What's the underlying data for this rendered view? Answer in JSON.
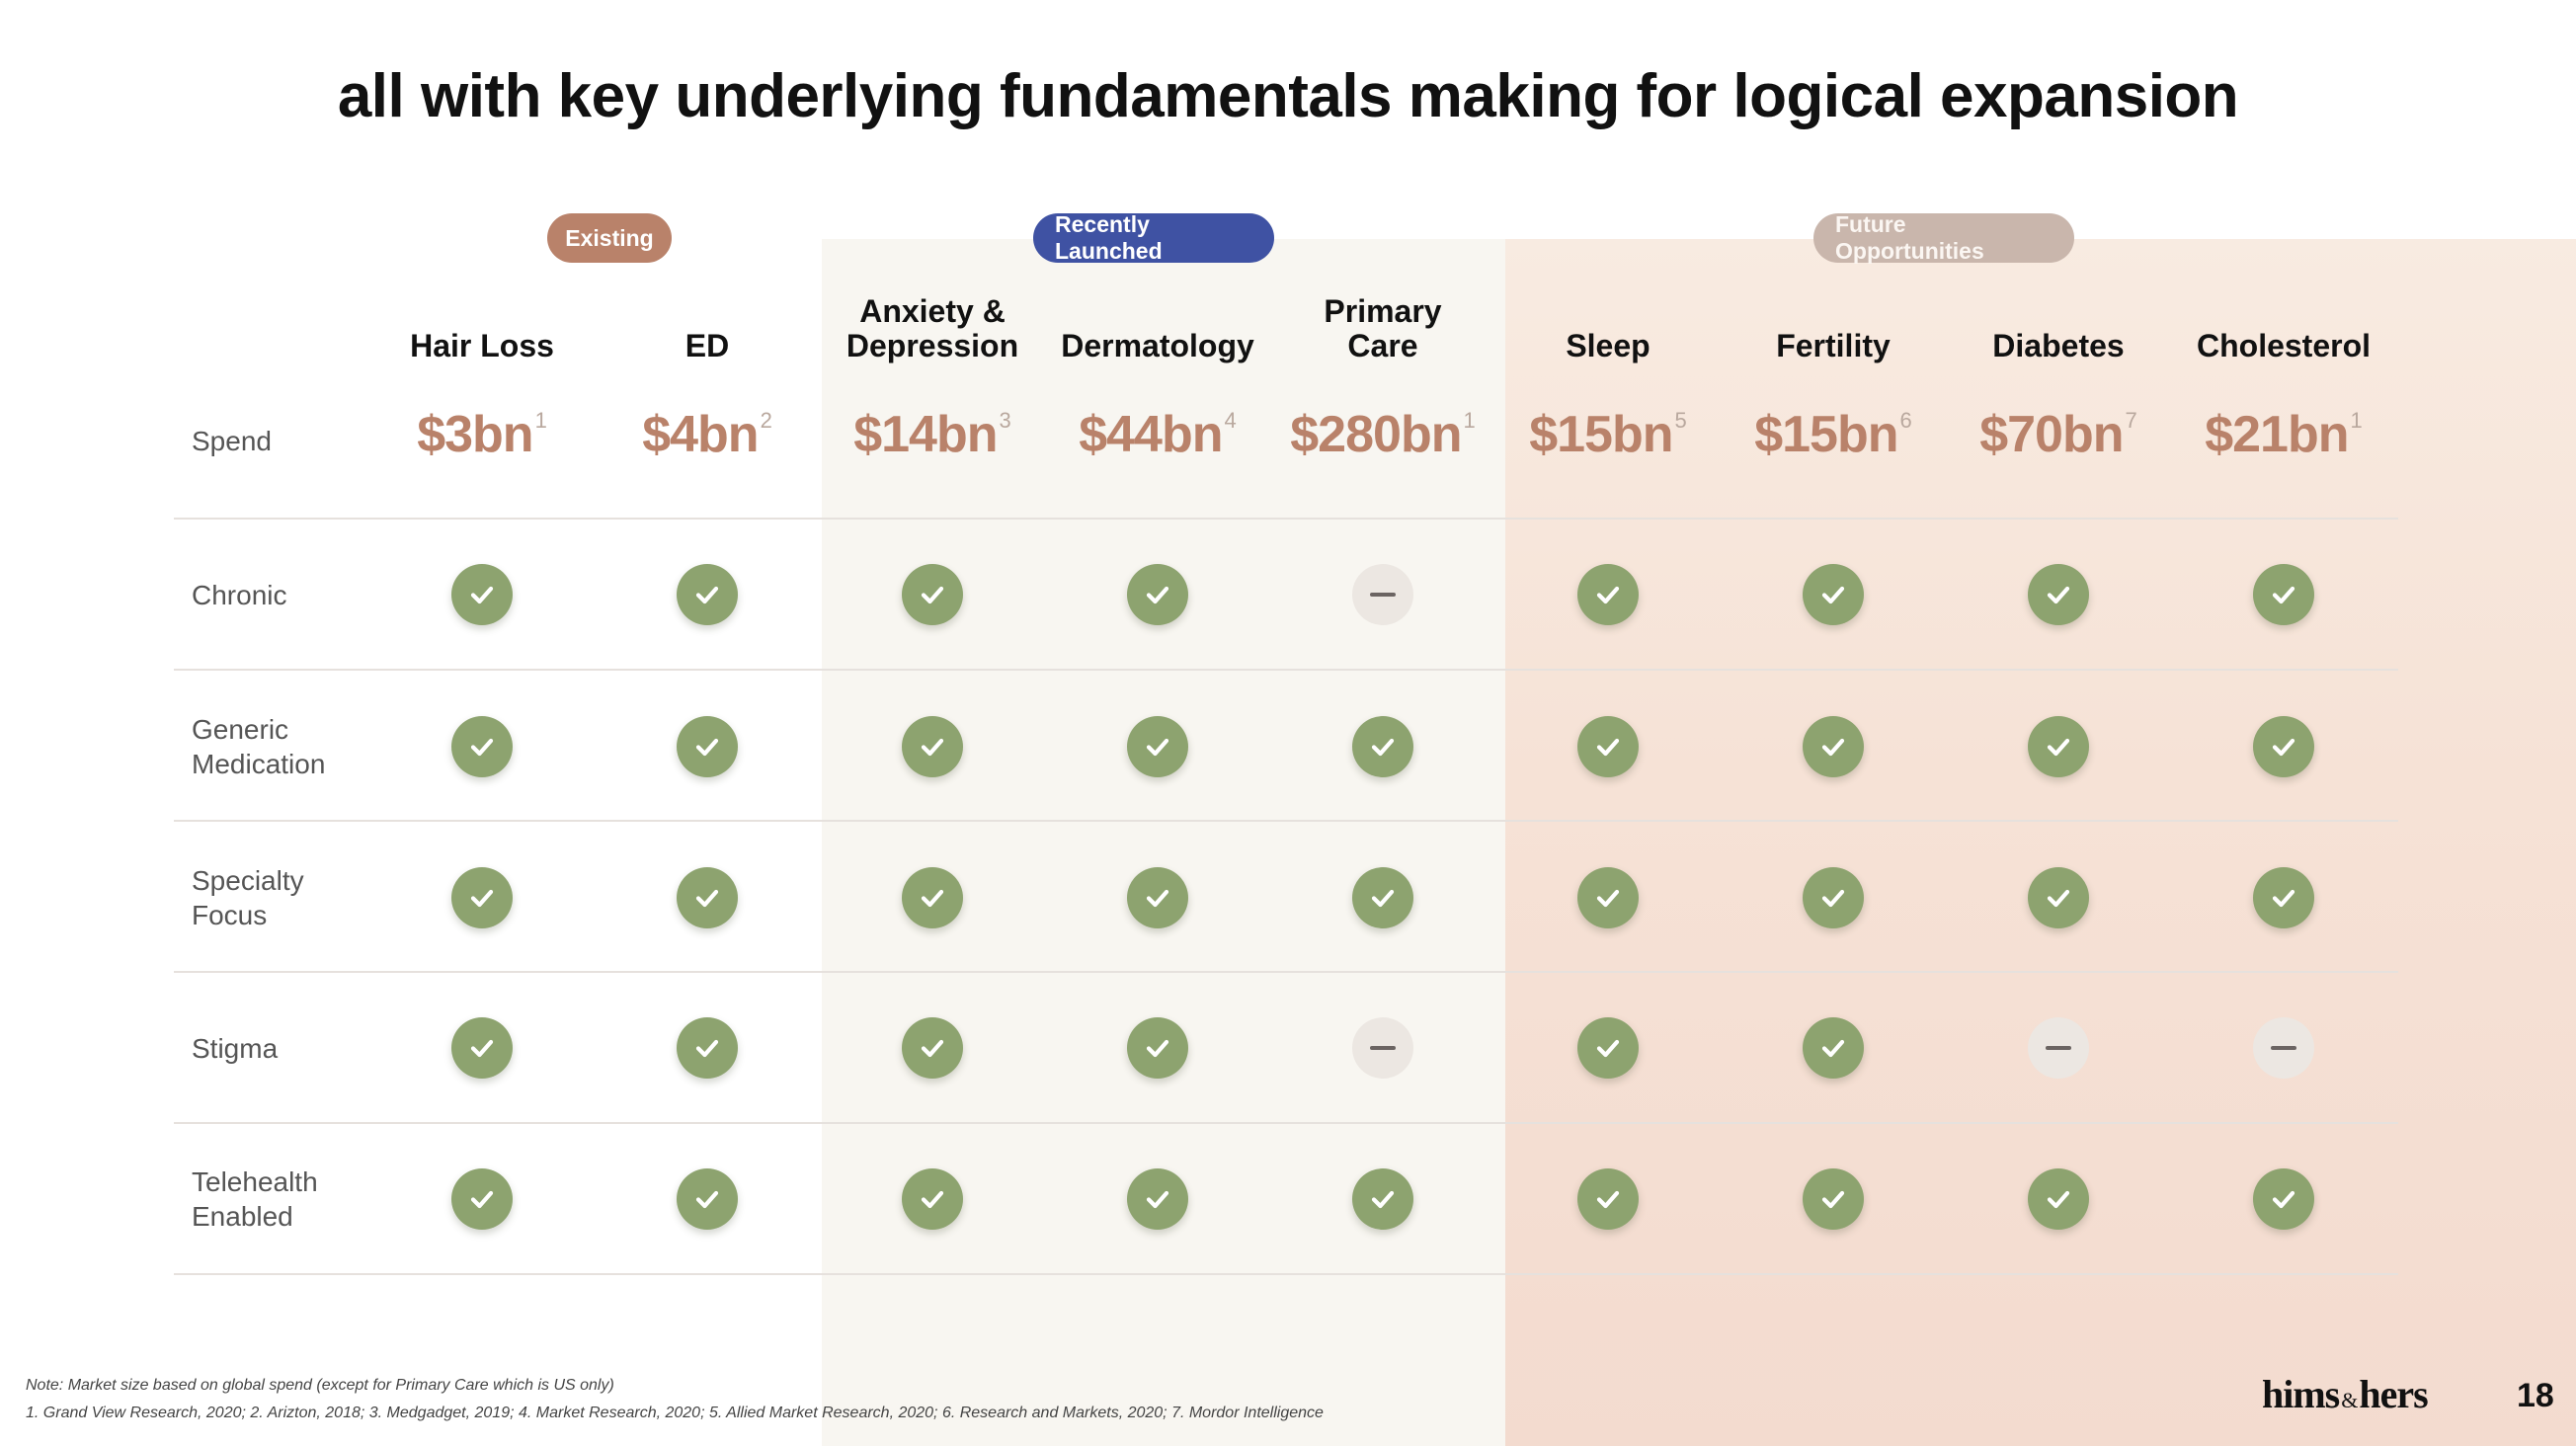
{
  "title": "all with key underlying fundamentals making for logical expansion",
  "groups": {
    "existing": "Existing",
    "recent": "Recently Launched",
    "future": "Future Opportunities"
  },
  "columns": [
    {
      "name": "Hair Loss",
      "spend": "$3bn",
      "ref": "1"
    },
    {
      "name": "ED",
      "spend": "$4bn",
      "ref": "2"
    },
    {
      "name": "Anxiety &\nDepression",
      "spend": "$14bn",
      "ref": "3"
    },
    {
      "name": "Dermatology",
      "spend": "$44bn",
      "ref": "4"
    },
    {
      "name": "Primary\nCare",
      "spend": "$280bn",
      "ref": "1"
    },
    {
      "name": "Sleep",
      "spend": "$15bn",
      "ref": "5"
    },
    {
      "name": "Fertility",
      "spend": "$15bn",
      "ref": "6"
    },
    {
      "name": "Diabetes",
      "spend": "$70bn",
      "ref": "7"
    },
    {
      "name": "Cholesterol",
      "spend": "$21bn",
      "ref": "1"
    }
  ],
  "rows": [
    {
      "label": "Spend"
    },
    {
      "label": "Chronic",
      "values": [
        "check",
        "check",
        "check",
        "check",
        "dash",
        "check",
        "check",
        "check",
        "check"
      ]
    },
    {
      "label": "Generic\nMedication",
      "values": [
        "check",
        "check",
        "check",
        "check",
        "check",
        "check",
        "check",
        "check",
        "check"
      ]
    },
    {
      "label": "Specialty\nFocus",
      "values": [
        "check",
        "check",
        "check",
        "check",
        "check",
        "check",
        "check",
        "check",
        "check"
      ]
    },
    {
      "label": "Stigma",
      "values": [
        "check",
        "check",
        "check",
        "check",
        "dash",
        "check",
        "check",
        "dash",
        "dash"
      ]
    },
    {
      "label": "Telehealth\nEnabled",
      "values": [
        "check",
        "check",
        "check",
        "check",
        "check",
        "check",
        "check",
        "check",
        "check"
      ]
    }
  ],
  "icons": {
    "check": "check-icon",
    "dash": "dash-icon"
  },
  "colors": {
    "check": "#8da36f",
    "spend": "#b9826a",
    "existing": "#b9826a",
    "recent": "#3f52a3",
    "future": "#c9b6ac"
  },
  "footnotes": {
    "note": "Note: Market size based on global spend (except for Primary Care which is US only)",
    "sources": "1. Grand View Research, 2020; 2. Arizton, 2018; 3. Medgadget, 2019; 4. Market Research, 2020; 5. Allied Market Research, 2020; 6. Research and Markets, 2020; 7. Mordor Intelligence"
  },
  "logo": {
    "left": "hims",
    "amp": "&",
    "right": "hers"
  },
  "page_number": "18"
}
